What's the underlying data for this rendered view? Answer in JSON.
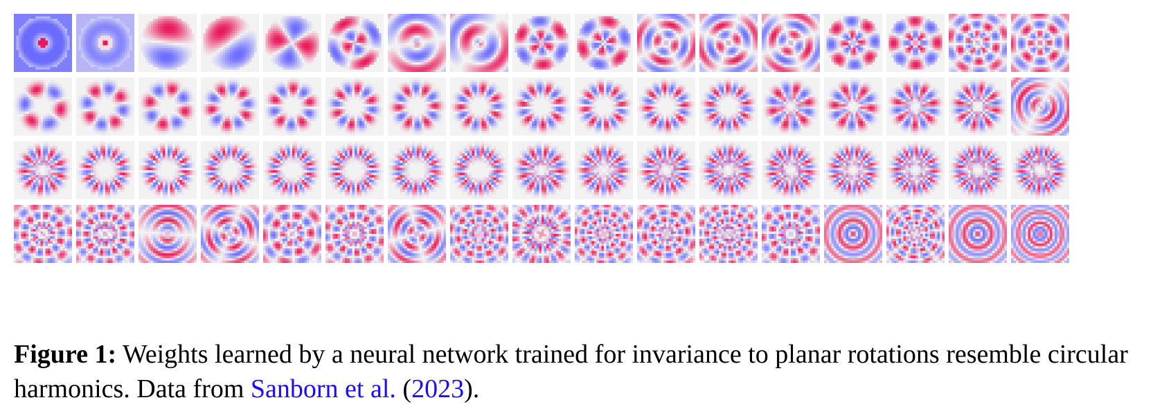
{
  "figure": {
    "rows": 4,
    "cols": 17,
    "colors": {
      "positive": "#e8185a",
      "negative": "#6b6bff",
      "background": "#f2f2f2"
    },
    "tiles": [
      {
        "p": "disk",
        "m": 0,
        "k": 1
      },
      {
        "p": "disk",
        "m": 0,
        "k": 2
      },
      {
        "p": "wedge",
        "m": 1,
        "k": 1
      },
      {
        "p": "wedge",
        "m": 1,
        "k": 1
      },
      {
        "p": "wedge",
        "m": 2,
        "k": 1
      },
      {
        "p": "wedge",
        "m": 2,
        "k": 2
      },
      {
        "p": "ring",
        "m": 1,
        "k": 2
      },
      {
        "p": "ring",
        "m": 1,
        "k": 2
      },
      {
        "p": "wedge",
        "m": 3,
        "k": 2
      },
      {
        "p": "wedge",
        "m": 3,
        "k": 2
      },
      {
        "p": "ring",
        "m": 2,
        "k": 3
      },
      {
        "p": "ring",
        "m": 2,
        "k": 3
      },
      {
        "p": "ring",
        "m": 2,
        "k": 3
      },
      {
        "p": "wedge",
        "m": 4,
        "k": 2
      },
      {
        "p": "wedge",
        "m": 4,
        "k": 2
      },
      {
        "p": "ring",
        "m": 5,
        "k": 3
      },
      {
        "p": "ring",
        "m": 4,
        "k": 3
      },
      {
        "p": "petal",
        "m": 3,
        "k": 1
      },
      {
        "p": "petal",
        "m": 4,
        "k": 1
      },
      {
        "p": "petal",
        "m": 4,
        "k": 1
      },
      {
        "p": "petal",
        "m": 5,
        "k": 1
      },
      {
        "p": "petal",
        "m": 5,
        "k": 1
      },
      {
        "p": "petal",
        "m": 6,
        "k": 1
      },
      {
        "p": "petal",
        "m": 6,
        "k": 1
      },
      {
        "p": "petal",
        "m": 7,
        "k": 1
      },
      {
        "p": "petal",
        "m": 7,
        "k": 1
      },
      {
        "p": "petal",
        "m": 8,
        "k": 1
      },
      {
        "p": "petal",
        "m": 8,
        "k": 1
      },
      {
        "p": "petal",
        "m": 9,
        "k": 1
      },
      {
        "p": "petal",
        "m": 6,
        "k": 2
      },
      {
        "p": "petal",
        "m": 6,
        "k": 2
      },
      {
        "p": "petal",
        "m": 7,
        "k": 2
      },
      {
        "p": "petal",
        "m": 8,
        "k": 2
      },
      {
        "p": "ring",
        "m": 1,
        "k": 4
      },
      {
        "p": "petal",
        "m": 9,
        "k": 2
      },
      {
        "p": "petal",
        "m": 10,
        "k": 1
      },
      {
        "p": "petal",
        "m": 10,
        "k": 1
      },
      {
        "p": "petal",
        "m": 11,
        "k": 1
      },
      {
        "p": "petal",
        "m": 11,
        "k": 1
      },
      {
        "p": "petal",
        "m": 12,
        "k": 1
      },
      {
        "p": "petal",
        "m": 12,
        "k": 1
      },
      {
        "p": "petal",
        "m": 13,
        "k": 1
      },
      {
        "p": "petal",
        "m": 9,
        "k": 2
      },
      {
        "p": "petal",
        "m": 10,
        "k": 2
      },
      {
        "p": "petal",
        "m": 10,
        "k": 2
      },
      {
        "p": "petal",
        "m": 11,
        "k": 2
      },
      {
        "p": "petal",
        "m": 11,
        "k": 2
      },
      {
        "p": "petal",
        "m": 12,
        "k": 2
      },
      {
        "p": "petal",
        "m": 12,
        "k": 2
      },
      {
        "p": "petal",
        "m": 13,
        "k": 2
      },
      {
        "p": "petal",
        "m": 13,
        "k": 2
      },
      {
        "p": "ring",
        "m": 7,
        "k": 3
      },
      {
        "p": "ring",
        "m": 9,
        "k": 3
      },
      {
        "p": "ring",
        "m": 1,
        "k": 4
      },
      {
        "p": "ring",
        "m": 2,
        "k": 4
      },
      {
        "p": "ring",
        "m": 5,
        "k": 3
      },
      {
        "p": "ring",
        "m": 8,
        "k": 3
      },
      {
        "p": "ring",
        "m": 2,
        "k": 4
      },
      {
        "p": "ring",
        "m": 7,
        "k": 4
      },
      {
        "p": "ring",
        "m": 12,
        "k": 2
      },
      {
        "p": "ring",
        "m": 8,
        "k": 4
      },
      {
        "p": "ring",
        "m": 6,
        "k": 4
      },
      {
        "p": "ring",
        "m": 9,
        "k": 4
      },
      {
        "p": "ring",
        "m": 8,
        "k": 3
      },
      {
        "p": "disk",
        "m": 0,
        "k": 4
      },
      {
        "p": "ring",
        "m": 6,
        "k": 5
      },
      {
        "p": "disk",
        "m": 0,
        "k": 4
      },
      {
        "p": "disk",
        "m": 0,
        "k": 5
      }
    ]
  },
  "caption": {
    "label": "Figure 1:",
    "text": "Weights learned by a neural network trained for invariance to planar rotations resemble circular harmonics. Data from",
    "cite_authors": "Sanborn et al.",
    "open_paren": "(",
    "cite_year": "2023",
    "close_paren": ")."
  }
}
